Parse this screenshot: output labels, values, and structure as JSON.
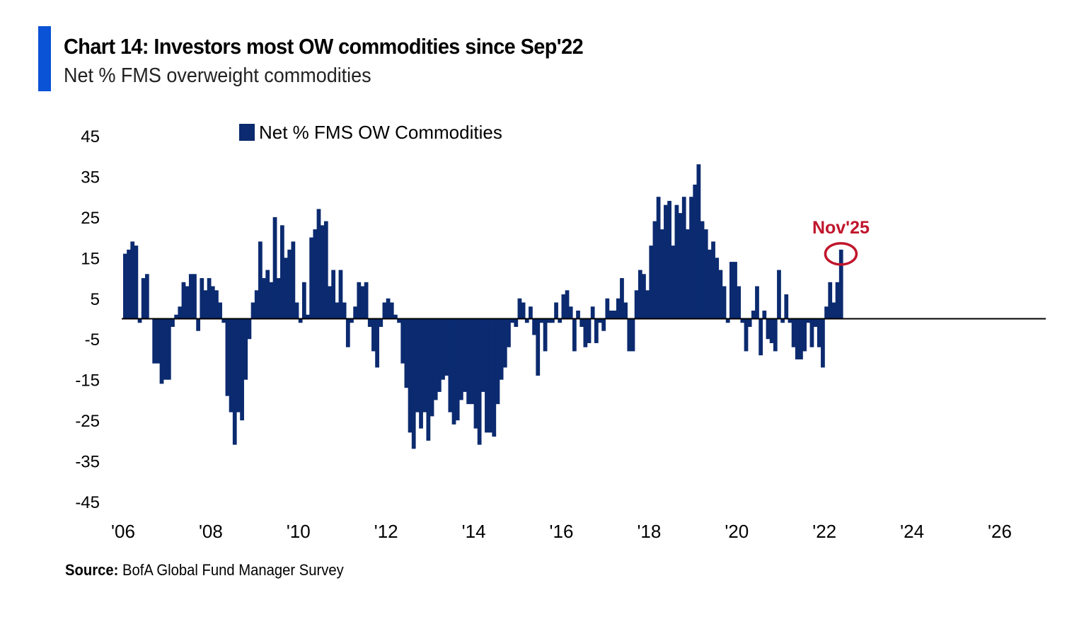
{
  "header": {
    "title": "Chart 14: Investors most OW commodities since Sep'22",
    "subtitle": "Net % FMS overweight commodities"
  },
  "source": {
    "label": "Source:",
    "text": "BofA Global Fund Manager Survey"
  },
  "colors": {
    "accent": "#0a52d6",
    "bars": "#0b2a6f",
    "annotation": "#c0162c"
  },
  "chart_data": {
    "type": "bar",
    "title": "",
    "xlabel": "",
    "ylabel": "",
    "legend": {
      "label": "Net % FMS OW Commodities",
      "position": "top-left"
    },
    "ylim": [
      -45,
      45
    ],
    "yticks": [
      "45",
      "35",
      "25",
      "15",
      "5",
      "-5",
      "-15",
      "-25",
      "-35",
      "-45"
    ],
    "xticks": [
      "'06",
      "'08",
      "'10",
      "'12",
      "'14",
      "'16",
      "'18",
      "'20",
      "'22",
      "'24",
      "'26"
    ],
    "xrange": [
      "Jan 2006",
      "Jan 2026"
    ],
    "grid": false,
    "annotation": {
      "label": "Nov'25",
      "target": "2025-11",
      "value": 17
    },
    "series": [
      {
        "start": "2006-01",
        "frequency": "monthly",
        "values": [
          16,
          17,
          19,
          18,
          -1,
          10,
          11,
          0,
          -11,
          -11,
          -16,
          -15,
          -15,
          -2,
          1,
          3,
          9,
          8,
          11,
          11,
          -3,
          10,
          7,
          10,
          8,
          7,
          4,
          -1,
          -19,
          -23,
          -31,
          -23,
          -25,
          -15,
          -5,
          4,
          7,
          19,
          10,
          12,
          9,
          25,
          10,
          23,
          15,
          17,
          19,
          4,
          -1,
          9,
          1,
          20,
          22,
          27,
          23,
          24,
          8,
          12,
          4,
          12,
          4,
          -7,
          -1,
          3,
          9,
          8,
          9,
          -2,
          -8,
          -12,
          -2,
          4,
          5,
          4,
          1,
          -1,
          -11,
          -17,
          -28,
          -32,
          -23,
          -27,
          -23,
          -30,
          -24,
          -20,
          -18,
          -15,
          -14,
          -23,
          -26,
          -25,
          -20,
          -18,
          -21,
          -21,
          -27,
          -31,
          -18,
          -28,
          -28,
          -29,
          -21,
          -15,
          -12,
          -7,
          -1,
          -2,
          5,
          4,
          -1,
          3,
          -4,
          -14,
          -1,
          -8,
          -1,
          -1,
          4,
          -1,
          6,
          7,
          3,
          -8,
          2,
          -2,
          -7,
          -6,
          3,
          -6,
          -1,
          -3,
          5,
          2,
          2,
          5,
          10,
          4,
          -8,
          -8,
          7,
          12,
          11,
          7,
          18,
          24,
          30,
          22,
          28,
          29,
          18,
          28,
          26,
          30,
          22,
          30,
          33,
          38,
          24,
          22,
          17,
          19,
          15,
          12,
          8,
          -1,
          14,
          14,
          8,
          -1,
          -8,
          -2,
          2,
          8,
          -9,
          2,
          -5,
          -6,
          -8,
          12,
          -1,
          6,
          -1,
          -7,
          -10,
          -10,
          -8,
          -1,
          -7,
          -2,
          -7,
          -12,
          3,
          9,
          4,
          9,
          17
        ]
      }
    ]
  }
}
